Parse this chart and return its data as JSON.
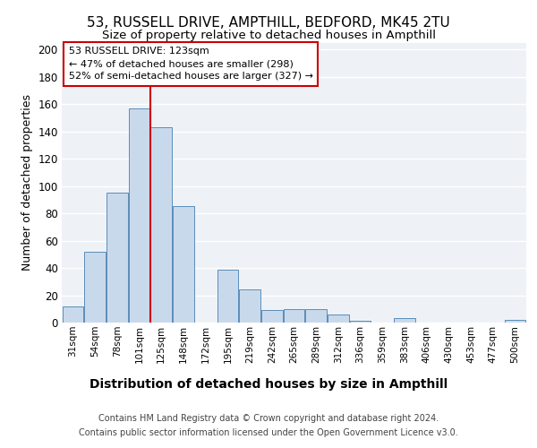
{
  "title1": "53, RUSSELL DRIVE, AMPTHILL, BEDFORD, MK45 2TU",
  "title2": "Size of property relative to detached houses in Ampthill",
  "xlabel": "Distribution of detached houses by size in Ampthill",
  "ylabel": "Number of detached properties",
  "footer1": "Contains HM Land Registry data © Crown copyright and database right 2024.",
  "footer2": "Contains public sector information licensed under the Open Government Licence v3.0.",
  "bins": [
    "31sqm",
    "54sqm",
    "78sqm",
    "101sqm",
    "125sqm",
    "148sqm",
    "172sqm",
    "195sqm",
    "219sqm",
    "242sqm",
    "265sqm",
    "289sqm",
    "312sqm",
    "336sqm",
    "359sqm",
    "383sqm",
    "406sqm",
    "430sqm",
    "453sqm",
    "477sqm",
    "500sqm"
  ],
  "values": [
    12,
    52,
    95,
    157,
    143,
    85,
    0,
    39,
    24,
    9,
    10,
    10,
    6,
    1,
    0,
    3,
    0,
    0,
    0,
    0,
    2
  ],
  "bar_color": "#c9d9ec",
  "bar_edge_color": "#5b8db8",
  "marker_label": "53 RUSSELL DRIVE: 123sqm",
  "annotation_line1": "← 47% of detached houses are smaller (298)",
  "annotation_line2": "52% of semi-detached houses are larger (327) →",
  "annotation_box_color": "#ffffff",
  "annotation_box_edge": "#cc0000",
  "vline_color": "#cc0000",
  "ylim": [
    0,
    205
  ],
  "yticks": [
    0,
    20,
    40,
    60,
    80,
    100,
    120,
    140,
    160,
    180,
    200
  ],
  "background_color": "#eef2f7",
  "grid_color": "#ffffff",
  "title1_fontsize": 11,
  "title2_fontsize": 9.5,
  "xlabel_fontsize": 10,
  "ylabel_fontsize": 9,
  "vline_bin_index": 4
}
